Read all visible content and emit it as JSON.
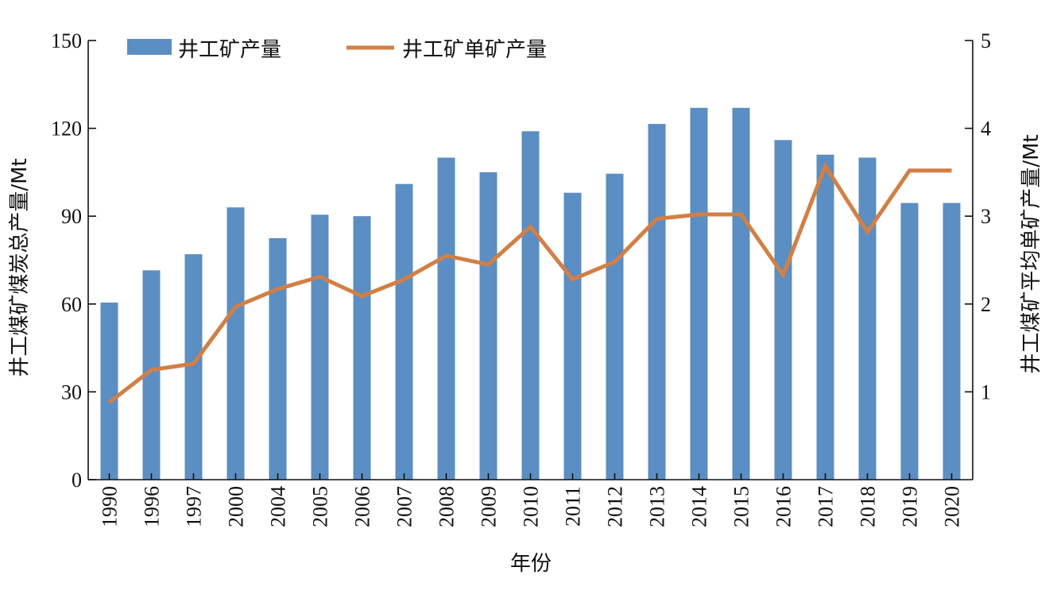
{
  "chart_data": {
    "type": "bar",
    "categories": [
      "1990",
      "1996",
      "1997",
      "2000",
      "2004",
      "2005",
      "2006",
      "2007",
      "2008",
      "2009",
      "2010",
      "2011",
      "2012",
      "2013",
      "2014",
      "2015",
      "2016",
      "2017",
      "2018",
      "2019",
      "2020"
    ],
    "series": [
      {
        "name": "井工矿产量",
        "type": "bar",
        "axis": "left",
        "color": "#5b8ec2",
        "values": [
          60.5,
          71.5,
          77,
          93,
          82.5,
          90.5,
          90,
          101,
          110,
          105,
          119,
          98,
          104.5,
          121.5,
          127,
          127,
          116,
          111,
          110,
          94.5,
          94.5
        ]
      },
      {
        "name": "井工矿单矿产量",
        "type": "line",
        "axis": "right",
        "color": "#d27f45",
        "values": [
          0.88,
          1.25,
          1.32,
          1.97,
          2.17,
          2.31,
          2.09,
          2.28,
          2.55,
          2.45,
          2.88,
          2.28,
          2.48,
          2.97,
          3.02,
          3.02,
          2.33,
          3.57,
          2.82,
          3.52,
          3.52
        ]
      }
    ],
    "xlabel": "年份",
    "ylabel_left": "井工煤矿煤炭总产量/Mt",
    "ylabel_right": "井工煤矿平均单矿产量/Mt",
    "ylim_left": [
      0,
      150
    ],
    "yticks_left": [
      0,
      30,
      60,
      90,
      120,
      150
    ],
    "ylim_right": [
      0,
      5
    ],
    "yticks_right": [
      1,
      2,
      3,
      4,
      5
    ],
    "grid": false,
    "legend_position": "top-left"
  }
}
